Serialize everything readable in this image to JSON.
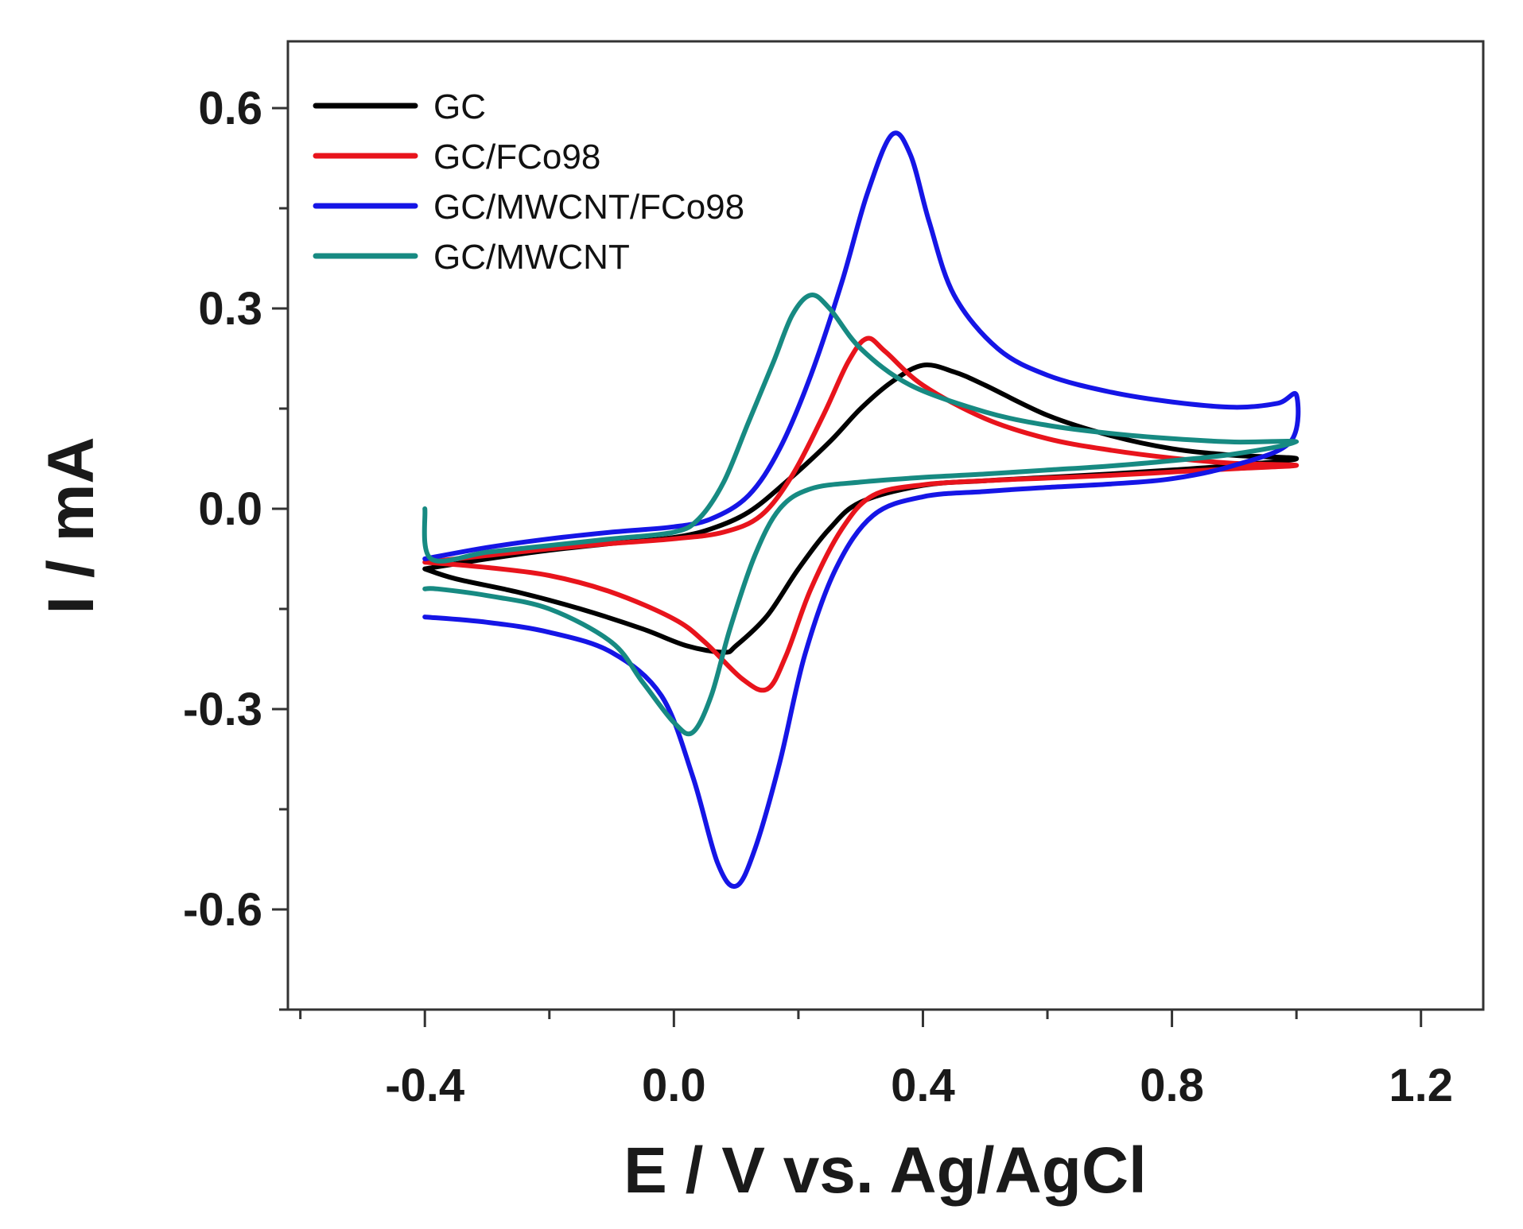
{
  "chart_data": {
    "type": "line",
    "title": "",
    "xlabel": "E / V vs. Ag/AgCl",
    "ylabel": "I / mA",
    "xlim": [
      -0.62,
      1.3
    ],
    "ylim": [
      -0.75,
      0.7
    ],
    "xticks": [
      -0.4,
      0.0,
      0.4,
      0.8,
      1.2
    ],
    "xtick_labels": [
      "-0.4",
      "0.0",
      "0.4",
      "0.8",
      "1.2"
    ],
    "yticks": [
      0.6,
      0.3,
      0.0,
      -0.3,
      -0.6
    ],
    "ytick_labels": [
      "0.6",
      "0.3",
      "0.0",
      "-0.3",
      "-0.6"
    ],
    "grid": false,
    "legend_position": "top-left",
    "series": [
      {
        "name": "GC",
        "color": "#000000",
        "anodic": [
          [
            -0.4,
            -0.09
          ],
          [
            -0.3,
            -0.075
          ],
          [
            -0.2,
            -0.062
          ],
          [
            -0.1,
            -0.052
          ],
          [
            0.0,
            -0.043
          ],
          [
            0.06,
            -0.03
          ],
          [
            0.12,
            -0.005
          ],
          [
            0.18,
            0.04
          ],
          [
            0.25,
            0.1
          ],
          [
            0.3,
            0.15
          ],
          [
            0.35,
            0.19
          ],
          [
            0.4,
            0.215
          ],
          [
            0.45,
            0.205
          ],
          [
            0.5,
            0.185
          ],
          [
            0.6,
            0.14
          ],
          [
            0.7,
            0.11
          ],
          [
            0.8,
            0.09
          ],
          [
            0.9,
            0.08
          ],
          [
            1.0,
            0.075
          ]
        ],
        "cathodic": [
          [
            1.0,
            0.075
          ],
          [
            0.9,
            0.065
          ],
          [
            0.8,
            0.058
          ],
          [
            0.7,
            0.052
          ],
          [
            0.6,
            0.047
          ],
          [
            0.5,
            0.042
          ],
          [
            0.4,
            0.035
          ],
          [
            0.3,
            0.01
          ],
          [
            0.25,
            -0.03
          ],
          [
            0.2,
            -0.09
          ],
          [
            0.15,
            -0.16
          ],
          [
            0.1,
            -0.205
          ],
          [
            0.08,
            -0.215
          ],
          [
            0.02,
            -0.205
          ],
          [
            -0.05,
            -0.18
          ],
          [
            -0.15,
            -0.15
          ],
          [
            -0.25,
            -0.125
          ],
          [
            -0.35,
            -0.105
          ],
          [
            -0.4,
            -0.09
          ]
        ]
      },
      {
        "name": "GC/FCo98",
        "color": "#e8141c",
        "anodic": [
          [
            -0.4,
            -0.08
          ],
          [
            -0.3,
            -0.07
          ],
          [
            -0.2,
            -0.06
          ],
          [
            -0.1,
            -0.052
          ],
          [
            0.0,
            -0.045
          ],
          [
            0.08,
            -0.035
          ],
          [
            0.14,
            -0.01
          ],
          [
            0.19,
            0.05
          ],
          [
            0.24,
            0.14
          ],
          [
            0.28,
            0.22
          ],
          [
            0.31,
            0.255
          ],
          [
            0.34,
            0.235
          ],
          [
            0.4,
            0.185
          ],
          [
            0.5,
            0.135
          ],
          [
            0.6,
            0.105
          ],
          [
            0.7,
            0.088
          ],
          [
            0.8,
            0.076
          ],
          [
            0.9,
            0.068
          ],
          [
            1.0,
            0.065
          ]
        ],
        "cathodic": [
          [
            1.0,
            0.065
          ],
          [
            0.9,
            0.06
          ],
          [
            0.8,
            0.055
          ],
          [
            0.7,
            0.05
          ],
          [
            0.6,
            0.046
          ],
          [
            0.5,
            0.042
          ],
          [
            0.4,
            0.036
          ],
          [
            0.32,
            0.02
          ],
          [
            0.27,
            -0.03
          ],
          [
            0.22,
            -0.12
          ],
          [
            0.18,
            -0.22
          ],
          [
            0.15,
            -0.27
          ],
          [
            0.11,
            -0.255
          ],
          [
            0.05,
            -0.2
          ],
          [
            0.0,
            -0.165
          ],
          [
            -0.1,
            -0.125
          ],
          [
            -0.2,
            -0.1
          ],
          [
            -0.3,
            -0.088
          ],
          [
            -0.4,
            -0.08
          ]
        ]
      },
      {
        "name": "GC/MWCNT/FCo98",
        "color": "#1515e6",
        "anodic": [
          [
            -0.4,
            -0.075
          ],
          [
            -0.3,
            -0.058
          ],
          [
            -0.2,
            -0.045
          ],
          [
            -0.1,
            -0.035
          ],
          [
            0.0,
            -0.027
          ],
          [
            0.06,
            -0.015
          ],
          [
            0.12,
            0.02
          ],
          [
            0.17,
            0.09
          ],
          [
            0.22,
            0.2
          ],
          [
            0.27,
            0.34
          ],
          [
            0.31,
            0.47
          ],
          [
            0.35,
            0.56
          ],
          [
            0.38,
            0.53
          ],
          [
            0.41,
            0.43
          ],
          [
            0.45,
            0.32
          ],
          [
            0.52,
            0.24
          ],
          [
            0.6,
            0.2
          ],
          [
            0.7,
            0.175
          ],
          [
            0.8,
            0.16
          ],
          [
            0.9,
            0.152
          ],
          [
            0.97,
            0.158
          ],
          [
            1.0,
            0.17
          ]
        ],
        "cathodic": [
          [
            1.0,
            0.17
          ],
          [
            0.99,
            0.1
          ],
          [
            0.9,
            0.065
          ],
          [
            0.8,
            0.045
          ],
          [
            0.7,
            0.037
          ],
          [
            0.6,
            0.032
          ],
          [
            0.5,
            0.026
          ],
          [
            0.4,
            0.018
          ],
          [
            0.32,
            -0.01
          ],
          [
            0.26,
            -0.09
          ],
          [
            0.21,
            -0.22
          ],
          [
            0.17,
            -0.38
          ],
          [
            0.13,
            -0.51
          ],
          [
            0.1,
            -0.565
          ],
          [
            0.07,
            -0.53
          ],
          [
            0.03,
            -0.4
          ],
          [
            -0.02,
            -0.28
          ],
          [
            -0.1,
            -0.215
          ],
          [
            -0.2,
            -0.185
          ],
          [
            -0.3,
            -0.17
          ],
          [
            -0.4,
            -0.162
          ]
        ]
      },
      {
        "name": "GC/MWCNT",
        "color": "#178a82",
        "anodic": [
          [
            -0.4,
            0.0
          ],
          [
            -0.39,
            -0.075
          ],
          [
            -0.3,
            -0.065
          ],
          [
            -0.2,
            -0.055
          ],
          [
            -0.1,
            -0.045
          ],
          [
            0.0,
            -0.035
          ],
          [
            0.04,
            -0.015
          ],
          [
            0.08,
            0.04
          ],
          [
            0.12,
            0.13
          ],
          [
            0.16,
            0.22
          ],
          [
            0.19,
            0.29
          ],
          [
            0.22,
            0.32
          ],
          [
            0.25,
            0.3
          ],
          [
            0.3,
            0.24
          ],
          [
            0.38,
            0.185
          ],
          [
            0.5,
            0.145
          ],
          [
            0.6,
            0.125
          ],
          [
            0.7,
            0.113
          ],
          [
            0.8,
            0.105
          ],
          [
            0.9,
            0.1
          ],
          [
            1.0,
            0.1
          ]
        ],
        "cathodic": [
          [
            1.0,
            0.1
          ],
          [
            0.9,
            0.082
          ],
          [
            0.8,
            0.072
          ],
          [
            0.7,
            0.064
          ],
          [
            0.6,
            0.058
          ],
          [
            0.5,
            0.052
          ],
          [
            0.4,
            0.047
          ],
          [
            0.3,
            0.04
          ],
          [
            0.22,
            0.03
          ],
          [
            0.17,
            0.0
          ],
          [
            0.13,
            -0.07
          ],
          [
            0.09,
            -0.18
          ],
          [
            0.06,
            -0.28
          ],
          [
            0.03,
            -0.335
          ],
          [
            0.0,
            -0.32
          ],
          [
            -0.05,
            -0.26
          ],
          [
            -0.1,
            -0.2
          ],
          [
            -0.2,
            -0.15
          ],
          [
            -0.3,
            -0.13
          ],
          [
            -0.38,
            -0.12
          ],
          [
            -0.4,
            -0.12
          ]
        ]
      }
    ]
  }
}
